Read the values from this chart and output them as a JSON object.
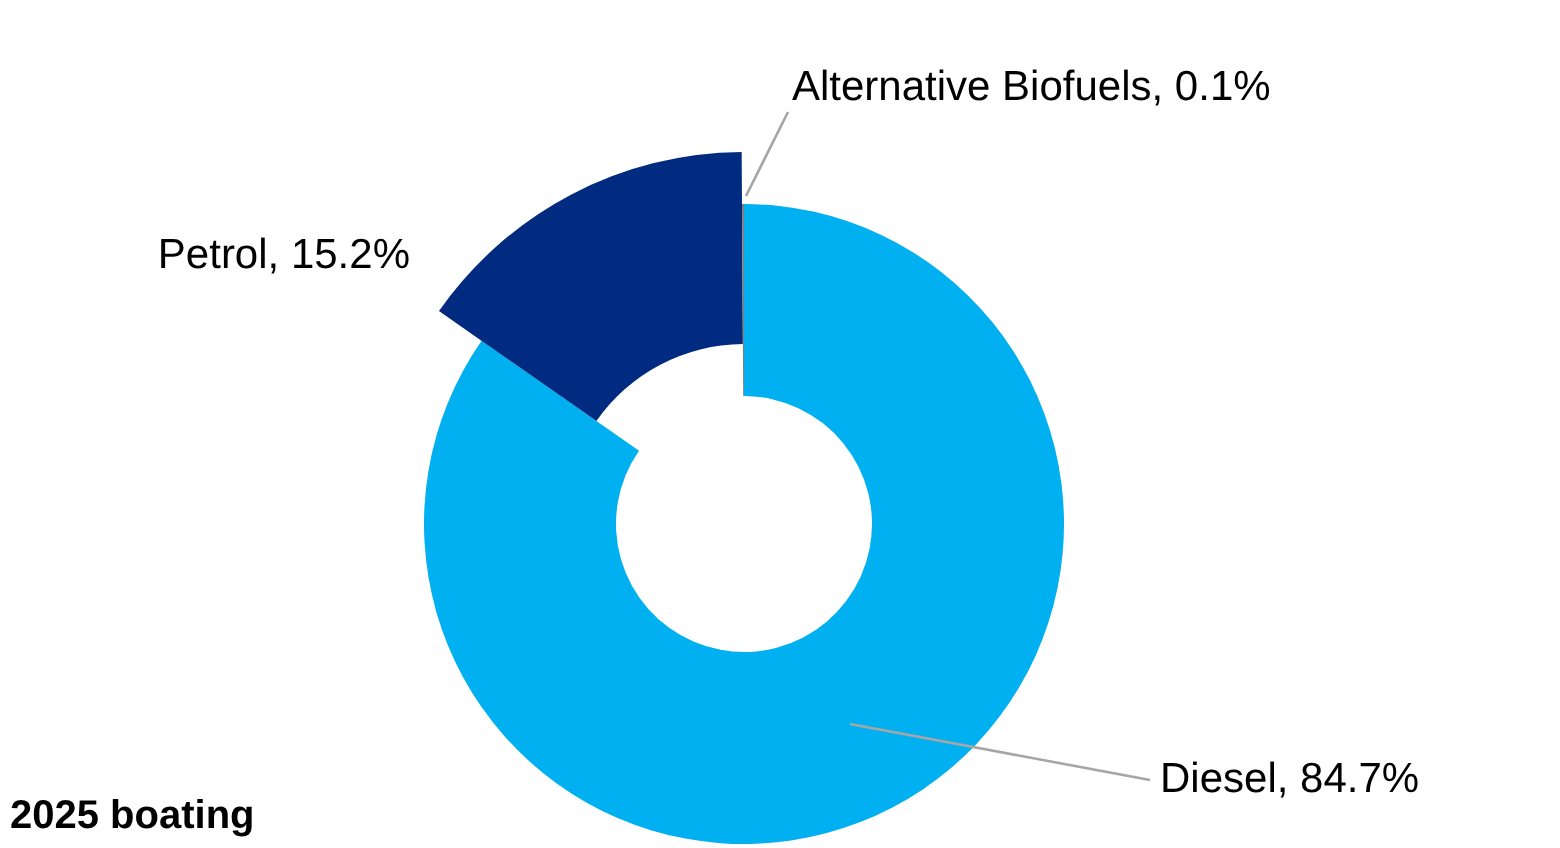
{
  "chart_data": {
    "type": "donut",
    "title": "2025 boating",
    "categories": [
      "Diesel",
      "Petrol",
      "Alternative Biofuels"
    ],
    "values": [
      84.7,
      15.2,
      0.1
    ],
    "value_labels": [
      "84.7%",
      "15.2%",
      "0.1%"
    ],
    "colors": [
      "#00b0f0",
      "#002b80",
      "#7f7f7f"
    ]
  }
}
